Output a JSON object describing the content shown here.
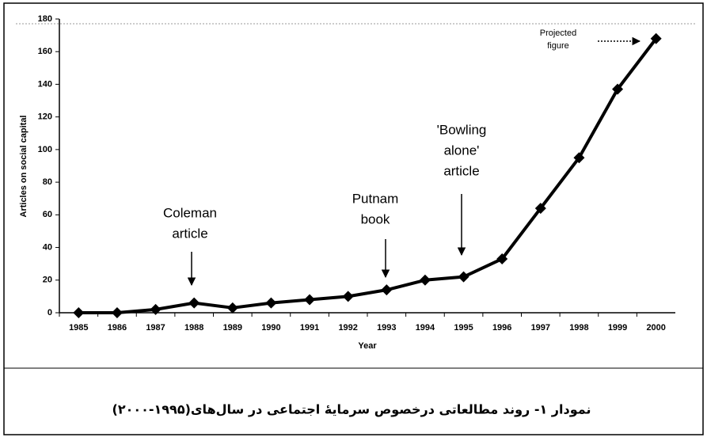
{
  "chart_data": {
    "type": "line",
    "x_label": "Year",
    "y_label": "Articles on social capital",
    "categories": [
      "1985",
      "1986",
      "1987",
      "1988",
      "1989",
      "1990",
      "1991",
      "1992",
      "1993",
      "1994",
      "1995",
      "1996",
      "1997",
      "1998",
      "1999",
      "2000"
    ],
    "values": [
      0,
      0,
      2,
      6,
      3,
      6,
      8,
      10,
      14,
      20,
      22,
      33,
      64,
      95,
      137,
      168
    ],
    "color": "#000000",
    "ylim": [
      0,
      180
    ],
    "yticks": [
      0,
      20,
      40,
      60,
      80,
      100,
      120,
      140,
      160,
      180
    ],
    "annotations": [
      {
        "lines": [
          "Coleman",
          "article"
        ]
      },
      {
        "lines": [
          "Putnam",
          "book"
        ]
      },
      {
        "lines": [
          "'Bowling",
          "alone'",
          "article"
        ]
      },
      {
        "lines": [
          "Projected",
          "figure"
        ]
      }
    ]
  },
  "caption": "نمودار ۱- روند مطالعاتی درخصوص سرمایهٔ اجتماعی در سال‌های(۱۹۹۵-۲۰۰۰)"
}
